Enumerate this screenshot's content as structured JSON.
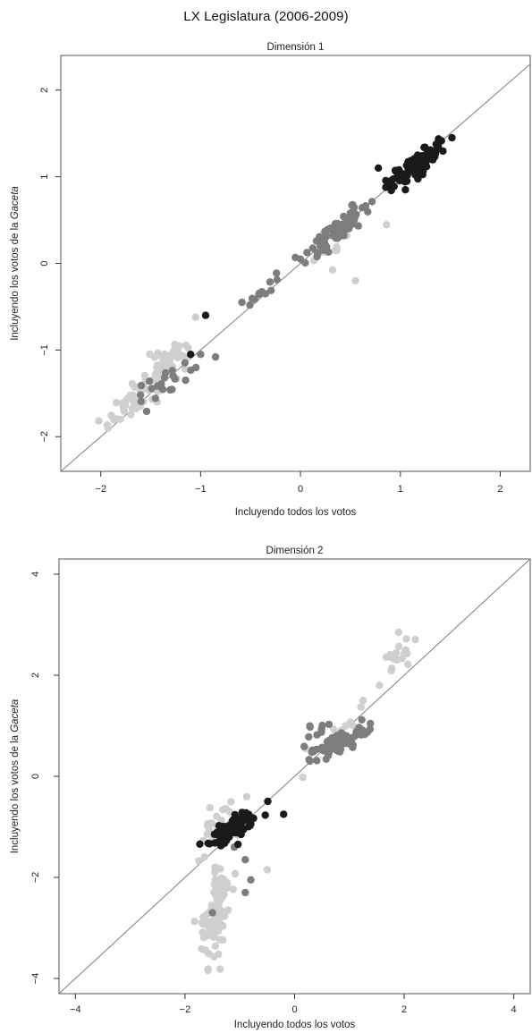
{
  "page_title": "LX Legislatura (2006-2009)",
  "colors": {
    "light": "#cfcfcf",
    "medium": "#7d7d7d",
    "dark": "#1a1a1a",
    "line": "#888888"
  },
  "chart_data": [
    {
      "type": "scatter",
      "title": "Dimensión 1",
      "xlabel": "Incluyendo todos los votos",
      "ylabel_prefix": "Incluyendo los votos de la ",
      "ylabel_italic": "Gaceta",
      "xlim": [
        -2.4,
        2.3
      ],
      "ylim": [
        -2.4,
        2.4
      ],
      "xticks": [
        -2,
        -1,
        0,
        1,
        2
      ],
      "yticks": [
        -2,
        -1,
        0,
        1,
        2
      ],
      "xtick_labels": [
        "−2",
        "−1",
        "0",
        "1",
        "2"
      ],
      "ytick_labels": [
        "−2",
        "−1",
        "0",
        "1",
        "2"
      ],
      "reference_line": "y = x",
      "clusters": [
        {
          "group": "light",
          "n": 70,
          "cx": -1.5,
          "cy": -1.4,
          "spread_along": 0.32,
          "spread_across": 0.07,
          "slope": 1.05
        },
        {
          "group": "light",
          "n": 20,
          "cx": -1.35,
          "cy": -1.1,
          "spread_along": 0.12,
          "spread_across": 0.06,
          "slope": 1.0
        },
        {
          "group": "medium",
          "n": 22,
          "cx": -1.3,
          "cy": -1.35,
          "spread_along": 0.22,
          "spread_across": 0.07,
          "slope": 0.9
        },
        {
          "group": "medium",
          "n": 75,
          "cx": 0.35,
          "cy": 0.38,
          "spread_along": 0.22,
          "spread_across": 0.06,
          "slope": 1.0
        },
        {
          "group": "light",
          "n": 14,
          "cx": 0.35,
          "cy": 0.2,
          "spread_along": 0.2,
          "spread_across": 0.08,
          "slope": 0.9
        },
        {
          "group": "medium",
          "n": 10,
          "cx": -0.4,
          "cy": -0.33,
          "spread_along": 0.12,
          "spread_across": 0.04,
          "slope": 1.0
        },
        {
          "group": "dark",
          "n": 90,
          "cx": 1.2,
          "cy": 1.18,
          "spread_along": 0.15,
          "spread_across": 0.04,
          "slope": 0.9
        },
        {
          "group": "dark",
          "n": 22,
          "cx": 0.98,
          "cy": 0.98,
          "spread_along": 0.1,
          "spread_across": 0.04,
          "slope": 0.7
        }
      ],
      "outliers": [
        {
          "group": "dark",
          "x": 0.78,
          "y": 1.1
        },
        {
          "group": "dark",
          "x": -0.95,
          "y": -0.6
        },
        {
          "group": "dark",
          "x": 1.05,
          "y": 0.85
        },
        {
          "group": "medium",
          "x": -0.85,
          "y": -1.08
        },
        {
          "group": "medium",
          "x": -1.0,
          "y": -1.05
        },
        {
          "group": "dark",
          "x": -1.1,
          "y": -1.05
        },
        {
          "group": "medium",
          "x": -0.35,
          "y": -0.35
        },
        {
          "group": "light",
          "x": 0.55,
          "y": -0.2
        },
        {
          "group": "medium",
          "x": 0.0,
          "y": 0.05
        },
        {
          "group": "light",
          "x": -1.05,
          "y": -0.62
        }
      ]
    },
    {
      "type": "scatter",
      "title": "Dimensión 2",
      "xlabel": "Incluyendo todos los votos",
      "ylabel_prefix": "Incluyendo los votos de la ",
      "ylabel_italic": "Gaceta",
      "xlim": [
        -4.3,
        4.3
      ],
      "ylim": [
        -4.3,
        4.3
      ],
      "xticks": [
        -4,
        -2,
        0,
        2,
        4
      ],
      "yticks": [
        -4,
        -2,
        0,
        2,
        4
      ],
      "xtick_labels": [
        "−4",
        "−2",
        "0",
        "2",
        "4"
      ],
      "ytick_labels": [
        "−4",
        "−2",
        "0",
        "2",
        "4"
      ],
      "reference_line": "y = x",
      "clusters": [
        {
          "group": "light",
          "n": 95,
          "cx": -1.4,
          "cy": -2.7,
          "spread_along": 0.55,
          "spread_across": 0.12,
          "slope": 6.0
        },
        {
          "group": "light",
          "n": 35,
          "cx": -1.3,
          "cy": -1.0,
          "spread_along": 0.3,
          "spread_across": 0.18,
          "slope": 1.0
        },
        {
          "group": "dark",
          "n": 95,
          "cx": -1.1,
          "cy": -1.0,
          "spread_along": 0.25,
          "spread_across": 0.08,
          "slope": 0.7
        },
        {
          "group": "medium",
          "n": 95,
          "cx": 0.8,
          "cy": 0.65,
          "spread_along": 0.3,
          "spread_across": 0.09,
          "slope": 0.6
        },
        {
          "group": "light",
          "n": 18,
          "cx": 1.9,
          "cy": 2.45,
          "spread_along": 0.25,
          "spread_across": 0.1,
          "slope": 1.0
        },
        {
          "group": "light",
          "n": 10,
          "cx": 0.9,
          "cy": 0.95,
          "spread_along": 0.35,
          "spread_across": 0.1,
          "slope": 1.0
        },
        {
          "group": "medium",
          "n": 10,
          "cx": 0.45,
          "cy": 0.85,
          "spread_along": 0.2,
          "spread_across": 0.12,
          "slope": 1.0
        }
      ],
      "outliers": [
        {
          "group": "dark",
          "x": -0.2,
          "y": -0.75
        },
        {
          "group": "medium",
          "x": -0.8,
          "y": -2.05
        },
        {
          "group": "medium",
          "x": -0.9,
          "y": -2.3
        },
        {
          "group": "medium",
          "x": -1.5,
          "y": -2.7
        },
        {
          "group": "medium",
          "x": -0.9,
          "y": -1.65
        },
        {
          "group": "light",
          "x": -0.5,
          "y": -1.85
        },
        {
          "group": "light",
          "x": 0.15,
          "y": -0.02
        },
        {
          "group": "light",
          "x": 1.55,
          "y": 1.8
        },
        {
          "group": "light",
          "x": 1.25,
          "y": 1.5
        },
        {
          "group": "light",
          "x": 0.2,
          "y": 0.55
        },
        {
          "group": "medium",
          "x": -1.1,
          "y": -1.4
        },
        {
          "group": "light",
          "x": 1.9,
          "y": 2.85
        }
      ]
    }
  ]
}
